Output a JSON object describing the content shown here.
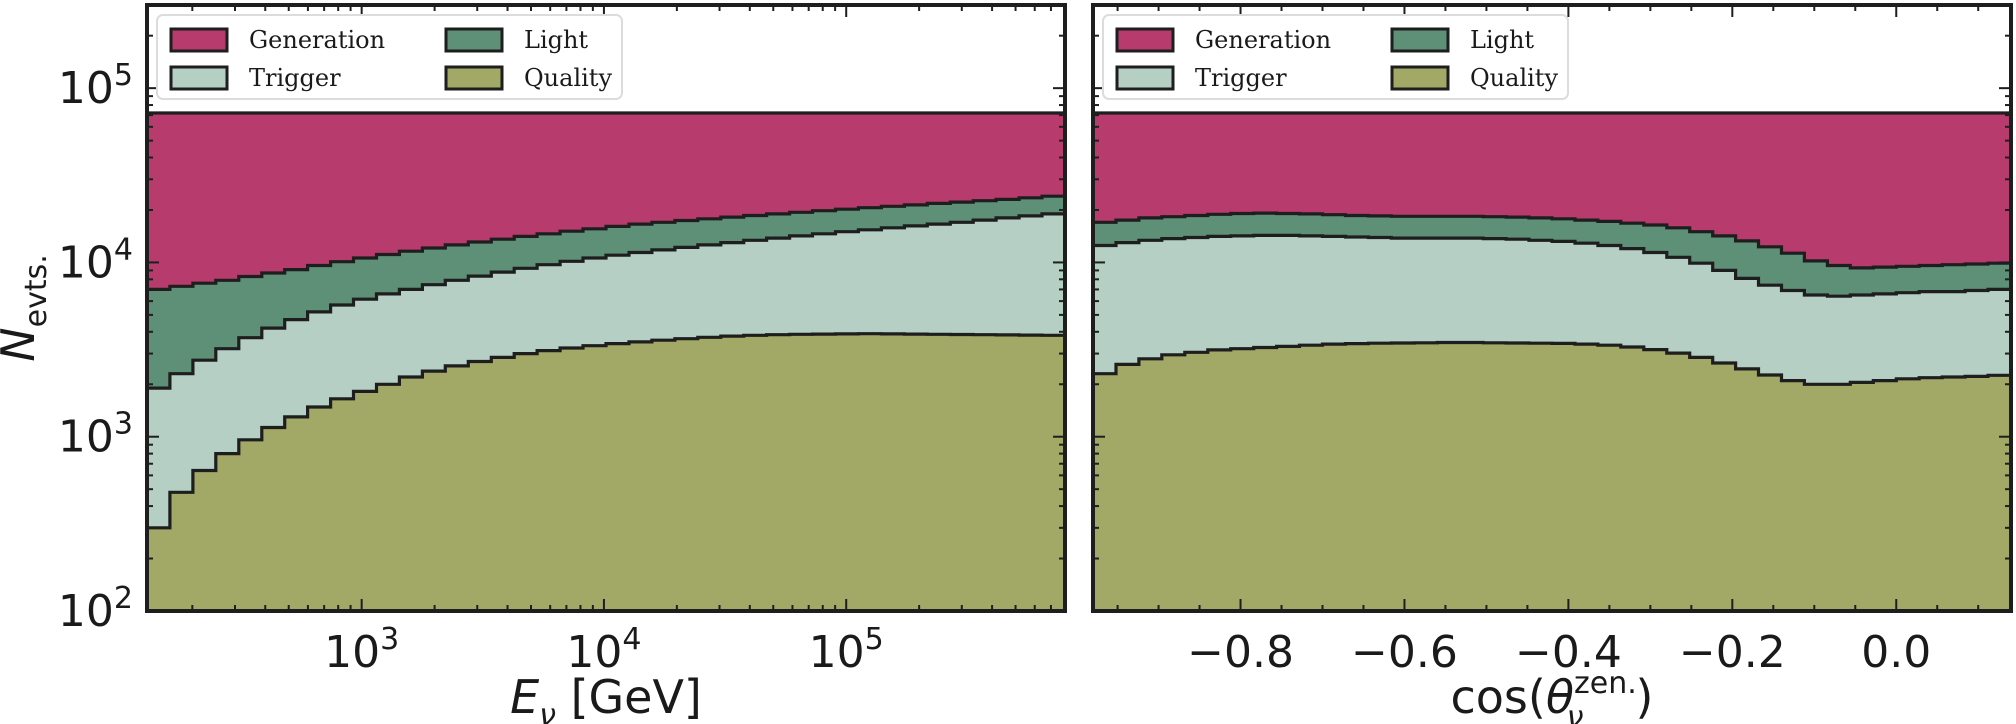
{
  "chart_data": [
    {
      "type": "area",
      "xscale": "log",
      "yscale": "log",
      "xlim": [
        130,
        800000
      ],
      "ylim": [
        100,
        300000
      ],
      "x_ticks": [
        {
          "value": 1000,
          "base": "10",
          "exp": "3"
        },
        {
          "value": 10000,
          "base": "10",
          "exp": "4"
        },
        {
          "value": 100000,
          "base": "10",
          "exp": "5"
        }
      ],
      "y_ticks": [
        {
          "value": 100,
          "base": "10",
          "exp": "2"
        },
        {
          "value": 1000,
          "base": "10",
          "exp": "3"
        },
        {
          "value": 10000,
          "base": "10",
          "exp": "4"
        },
        {
          "value": 100000,
          "base": "10",
          "exp": "5"
        }
      ],
      "ylabel": {
        "main": "N",
        "sub": "evts."
      },
      "xlabel": {
        "main": "E",
        "sub": "ν",
        "unit": " [GeV]"
      },
      "legend": {
        "position": "top-left",
        "ncol": 2
      },
      "series": [
        {
          "name": "Generation",
          "color": "#b83b6e",
          "values": [
            72000,
            72000,
            72000,
            72000,
            72000,
            72000,
            72000,
            72000,
            72000,
            72000,
            72000,
            72000,
            72000,
            72000,
            72000,
            72000,
            72000,
            72000,
            72000,
            72000,
            72000,
            72000,
            72000,
            72000,
            72000,
            72000,
            72000,
            72000,
            72000,
            72000,
            72000,
            72000,
            72000,
            72000,
            72000,
            72000,
            72000,
            72000,
            72000,
            72000
          ]
        },
        {
          "name": "Light",
          "color": "#5e8f77",
          "values": [
            7000,
            7300,
            7600,
            7900,
            8300,
            8700,
            9100,
            9600,
            10100,
            10600,
            11100,
            11600,
            12100,
            12600,
            13100,
            13600,
            14100,
            14600,
            15100,
            15600,
            16100,
            16600,
            17000,
            17400,
            17800,
            18200,
            18600,
            19000,
            19400,
            19800,
            20200,
            20600,
            21000,
            21400,
            21800,
            22200,
            22600,
            23000,
            23500,
            24000
          ]
        },
        {
          "name": "Trigger",
          "color": "#b5cfc5",
          "values": [
            1900,
            2300,
            2750,
            3200,
            3700,
            4200,
            4700,
            5200,
            5700,
            6150,
            6600,
            7000,
            7450,
            7900,
            8350,
            8800,
            9250,
            9700,
            10150,
            10600,
            11000,
            11400,
            11800,
            12200,
            12600,
            13000,
            13400,
            13800,
            14200,
            14600,
            15000,
            15400,
            15800,
            16200,
            16600,
            17000,
            17500,
            18000,
            18500,
            19000
          ]
        },
        {
          "name": "Quality",
          "color": "#a2a866",
          "values": [
            300,
            480,
            640,
            800,
            960,
            1130,
            1300,
            1480,
            1650,
            1820,
            2000,
            2200,
            2380,
            2550,
            2700,
            2850,
            3000,
            3120,
            3230,
            3330,
            3420,
            3500,
            3580,
            3650,
            3720,
            3780,
            3820,
            3850,
            3870,
            3880,
            3890,
            3900,
            3890,
            3880,
            3870,
            3860,
            3850,
            3840,
            3830,
            3820
          ]
        }
      ]
    },
    {
      "type": "area",
      "xscale": "linear",
      "yscale": "log",
      "xlim": [
        -0.98,
        0.14
      ],
      "ylim": [
        100,
        300000
      ],
      "x_ticks": [
        {
          "value": -0.8,
          "label": "−0.8"
        },
        {
          "value": -0.6,
          "label": "−0.6"
        },
        {
          "value": -0.4,
          "label": "−0.4"
        },
        {
          "value": -0.2,
          "label": "−0.2"
        },
        {
          "value": 0.0,
          "label": "0.0"
        }
      ],
      "xlabel": {
        "prefix": "cos(",
        "main": "θ",
        "sup": "zen.",
        "sub": "ν",
        "suffix": ")"
      },
      "legend": {
        "position": "top-left",
        "ncol": 2
      },
      "series": [
        {
          "name": "Generation",
          "color": "#b83b6e",
          "values": [
            72000,
            72000,
            72000,
            72000,
            72000,
            72000,
            72000,
            72000,
            72000,
            72000,
            72000,
            72000,
            72000,
            72000,
            72000,
            72000,
            72000,
            72000,
            72000,
            72000,
            72000,
            72000,
            72000,
            72000,
            72000,
            72000,
            72000,
            72000,
            72000,
            72000,
            72000,
            72000,
            72000,
            72000,
            72000,
            72000,
            72000,
            72000,
            72000,
            72000
          ]
        },
        {
          "name": "Light",
          "color": "#5e8f77",
          "values": [
            17000,
            17500,
            18000,
            18300,
            18600,
            18900,
            19100,
            19200,
            19100,
            19000,
            18800,
            18600,
            18500,
            18400,
            18400,
            18400,
            18400,
            18300,
            18200,
            18000,
            17800,
            17500,
            17200,
            16800,
            16400,
            15800,
            15000,
            14200,
            13300,
            12300,
            11300,
            10200,
            9600,
            9300,
            9400,
            9500,
            9600,
            9700,
            9800,
            9900
          ]
        },
        {
          "name": "Trigger",
          "color": "#b5cfc5",
          "values": [
            12500,
            13000,
            13400,
            13700,
            13900,
            14100,
            14200,
            14300,
            14300,
            14200,
            14100,
            14000,
            13900,
            13800,
            13800,
            13800,
            13800,
            13700,
            13600,
            13400,
            13200,
            12900,
            12500,
            12000,
            11400,
            10700,
            9900,
            9000,
            8100,
            7400,
            6900,
            6500,
            6400,
            6500,
            6600,
            6700,
            6800,
            6800,
            6900,
            7000
          ]
        },
        {
          "name": "Quality",
          "color": "#a2a866",
          "values": [
            2300,
            2600,
            2800,
            2950,
            3050,
            3150,
            3200,
            3250,
            3300,
            3350,
            3400,
            3420,
            3440,
            3450,
            3460,
            3470,
            3470,
            3460,
            3450,
            3440,
            3430,
            3400,
            3350,
            3270,
            3160,
            3020,
            2850,
            2650,
            2450,
            2260,
            2100,
            2000,
            2000,
            2050,
            2100,
            2150,
            2180,
            2200,
            2220,
            2250
          ]
        }
      ]
    }
  ]
}
